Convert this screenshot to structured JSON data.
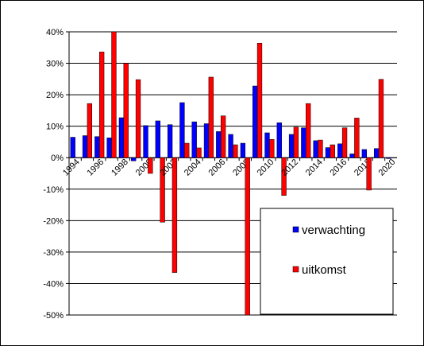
{
  "chart_data": {
    "type": "bar",
    "categories": [
      "1994",
      null,
      "1996",
      null,
      "1998",
      null,
      "2000",
      null,
      "2002",
      null,
      "2004",
      null,
      "2006",
      null,
      "2008",
      null,
      "2010",
      null,
      "2012",
      null,
      "2014",
      null,
      "2016",
      null,
      "2018",
      null,
      "2020"
    ],
    "series": [
      {
        "name": "verwachting",
        "color": "#0000ff",
        "values": [
          6.5,
          7,
          6.7,
          6.3,
          12.7,
          -1,
          10.2,
          11.7,
          10.5,
          17.5,
          11.4,
          10.8,
          8.3,
          7.4,
          4.6,
          22.8,
          7.9,
          11.1,
          7.4,
          9.5,
          5.4,
          3.2,
          4.4,
          1.2,
          2.6,
          2.9,
          -0.3
        ]
      },
      {
        "name": "uitkomst",
        "color": "#ff0000",
        "values": [
          0,
          17.2,
          33.6,
          40,
          30,
          24.8,
          -5,
          -20.5,
          -36.5,
          4.6,
          3.1,
          25.6,
          13.3,
          4.1,
          -50,
          36.4,
          5.8,
          -12,
          9.7,
          17.2,
          5.6,
          4.1,
          9.5,
          12.6,
          -10.3,
          24.9,
          0
        ]
      }
    ],
    "ylim": [
      -50,
      40
    ],
    "yticks": [
      {
        "value": -50,
        "label": "-50%"
      },
      {
        "value": -40,
        "label": "-40%"
      },
      {
        "value": -30,
        "label": "-30%"
      },
      {
        "value": -20,
        "label": "-20%"
      },
      {
        "value": -10,
        "label": "-10%"
      },
      {
        "value": 0,
        "label": "0%"
      },
      {
        "value": 10,
        "label": "10%"
      },
      {
        "value": 20,
        "label": "20%"
      },
      {
        "value": 30,
        "label": "30%"
      },
      {
        "value": 40,
        "label": "40%"
      }
    ],
    "grid": true
  }
}
